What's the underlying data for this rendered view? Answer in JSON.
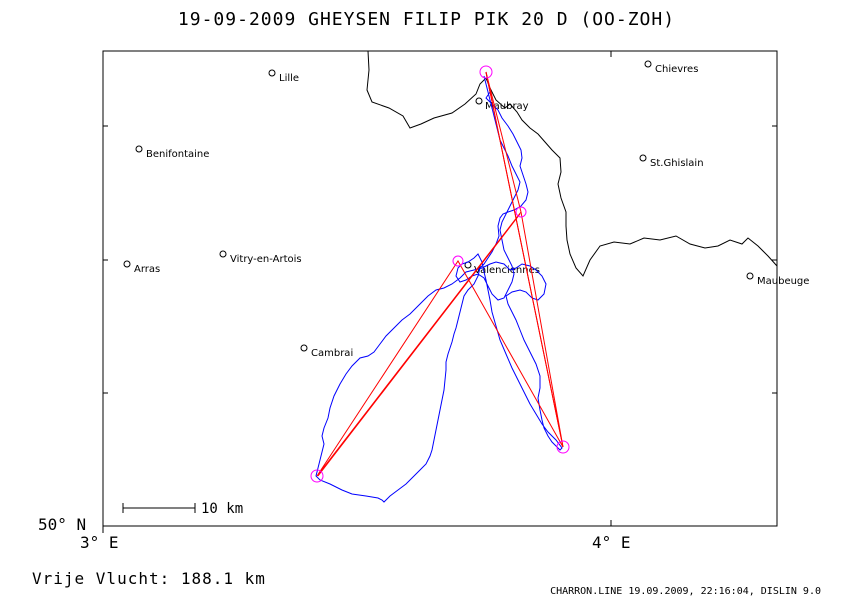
{
  "title": "19-09-2009   GHEYSEN FILIP   PIK 20 D (OO-ZOH)",
  "axis": {
    "lat_label": "50° N",
    "lon_labels": [
      "3° E",
      "4° E"
    ]
  },
  "scale_bar_label": "10 km",
  "distance_text": "Vrije Vlucht:  188.1 km",
  "footer_text": "CHARRON.LINE 19.09.2009, 22:16:04, DISLIN 9.0",
  "colors": {
    "track": "#0000ff",
    "task_line": "#ff0000",
    "turnpoint": "#ff00ff",
    "border": "#000000"
  },
  "places": [
    {
      "name": "Lille"
    },
    {
      "name": "Chievres"
    },
    {
      "name": "Maubray"
    },
    {
      "name": "Benifontaine"
    },
    {
      "name": "St.Ghislain"
    },
    {
      "name": "Arras"
    },
    {
      "name": "Vitry-en-Artois"
    },
    {
      "name": "Valenciennes"
    },
    {
      "name": "Maubeuge"
    },
    {
      "name": "Cambrai"
    }
  ]
}
